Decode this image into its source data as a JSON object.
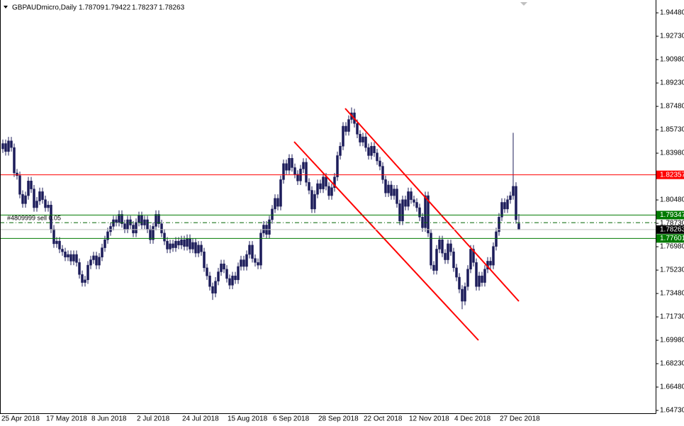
{
  "chart_data": {
    "type": "candlestick",
    "symbol": "GBPAUDmicro,Daily",
    "color": "#1c1c5a",
    "ylim": [
      1.6452,
      1.9544
    ],
    "yticks": [
      {
        "value": 1.9448,
        "label": "1.94480"
      },
      {
        "value": 1.9273,
        "label": "1.92730"
      },
      {
        "value": 1.9098,
        "label": "1.90980"
      },
      {
        "value": 1.8923,
        "label": "1.89230"
      },
      {
        "value": 1.8748,
        "label": "1.87480"
      },
      {
        "value": 1.8573,
        "label": "1.85730"
      },
      {
        "value": 1.8398,
        "label": "1.83980"
      },
      {
        "value": 1.8223,
        "label": "1.82230"
      },
      {
        "value": 1.8048,
        "label": "1.80480"
      },
      {
        "value": 1.7873,
        "label": "1.78730"
      },
      {
        "value": 1.7698,
        "label": "1.76980"
      },
      {
        "value": 1.7523,
        "label": "1.75230"
      },
      {
        "value": 1.7348,
        "label": "1.73480"
      },
      {
        "value": 1.7173,
        "label": "1.71730"
      },
      {
        "value": 1.6998,
        "label": "1.69980"
      },
      {
        "value": 1.6823,
        "label": "1.68230"
      },
      {
        "value": 1.6648,
        "label": "1.66480"
      },
      {
        "value": 1.6473,
        "label": "1.64730"
      }
    ],
    "categories": [
      "25 Apr 2018",
      null,
      null,
      null,
      null,
      null,
      null,
      null,
      null,
      null,
      null,
      null,
      null,
      null,
      null,
      null,
      "17 May 2018",
      null,
      null,
      null,
      null,
      null,
      null,
      null,
      null,
      null,
      null,
      null,
      null,
      null,
      null,
      null,
      "8 Jun 2018",
      null,
      null,
      null,
      null,
      null,
      null,
      null,
      null,
      null,
      null,
      null,
      null,
      null,
      null,
      null,
      "2 Jul 2018",
      null,
      null,
      null,
      null,
      null,
      null,
      null,
      null,
      null,
      null,
      null,
      null,
      null,
      null,
      null,
      "24 Jul 2018",
      null,
      null,
      null,
      null,
      null,
      null,
      null,
      null,
      null,
      null,
      null,
      null,
      null,
      null,
      null,
      "15 Aug 2018",
      null,
      null,
      null,
      null,
      null,
      null,
      null,
      null,
      null,
      null,
      null,
      null,
      null,
      null,
      null,
      "6 Sep 2018",
      null,
      null,
      null,
      null,
      null,
      null,
      null,
      null,
      null,
      null,
      null,
      null,
      null,
      null,
      null,
      "28 Sep 2018",
      null,
      null,
      null,
      null,
      null,
      null,
      null,
      null,
      null,
      null,
      null,
      null,
      null,
      null,
      null,
      "22 Oct 2018",
      null,
      null,
      null,
      null,
      null,
      null,
      null,
      null,
      null,
      null,
      null,
      null,
      null,
      null,
      null,
      "12 Nov 2018",
      null,
      null,
      null,
      null,
      null,
      null,
      null,
      null,
      null,
      null,
      null,
      null,
      null,
      null,
      null,
      "4 Dec 2018",
      null,
      null,
      null,
      null,
      null,
      null,
      null,
      null,
      null,
      null,
      null,
      null,
      null,
      null,
      null,
      "27 Dec 2018",
      null,
      null,
      null,
      null,
      null,
      null
    ],
    "open": [
      1.843,
      1.847,
      1.841,
      1.849,
      1.844,
      1.825,
      1.823,
      1.809,
      1.802,
      1.808,
      1.819,
      1.813,
      1.799,
      1.804,
      1.811,
      1.805,
      1.799,
      1.801,
      1.783,
      1.772,
      1.774,
      1.768,
      1.766,
      1.762,
      1.764,
      1.759,
      1.764,
      1.758,
      1.749,
      1.743,
      1.745,
      1.756,
      1.76,
      1.763,
      1.756,
      1.762,
      1.769,
      1.775,
      1.781,
      1.785,
      1.79,
      1.788,
      1.794,
      1.787,
      1.783,
      1.79,
      1.786,
      1.78,
      1.788,
      1.793,
      1.786,
      1.79,
      1.783,
      1.775,
      1.785,
      1.794,
      1.787,
      1.78,
      1.774,
      1.768,
      1.772,
      1.769,
      1.774,
      1.771,
      1.775,
      1.77,
      1.776,
      1.768,
      1.773,
      1.765,
      1.771,
      1.766,
      1.754,
      1.748,
      1.74,
      1.735,
      1.744,
      1.751,
      1.757,
      1.753,
      1.746,
      1.741,
      1.748,
      1.745,
      1.755,
      1.76,
      1.755,
      1.764,
      1.771,
      1.761,
      1.758,
      1.756,
      1.78,
      1.786,
      1.779,
      1.79,
      1.798,
      1.806,
      1.8,
      1.82,
      1.832,
      1.827,
      1.836,
      1.829,
      1.824,
      1.819,
      1.828,
      1.833,
      1.818,
      1.812,
      1.798,
      1.809,
      1.817,
      1.813,
      1.822,
      1.815,
      1.808,
      1.814,
      1.822,
      1.838,
      1.845,
      1.86,
      1.856,
      1.865,
      1.87,
      1.862,
      1.854,
      1.848,
      1.852,
      1.844,
      1.838,
      1.845,
      1.84,
      1.834,
      1.83,
      1.82,
      1.81,
      1.816,
      1.808,
      1.813,
      1.802,
      1.789,
      1.805,
      1.8,
      1.811,
      1.805,
      1.803,
      1.799,
      1.792,
      1.784,
      1.808,
      1.78,
      1.756,
      1.752,
      1.768,
      1.775,
      1.765,
      1.76,
      1.772,
      1.766,
      1.754,
      1.747,
      1.738,
      1.729,
      1.74,
      1.753,
      1.768,
      1.758,
      1.74,
      1.748,
      1.743,
      1.753,
      1.759,
      1.756,
      1.77,
      1.781,
      1.792,
      1.803,
      1.798,
      1.805,
      1.808,
      1.815,
      1.78709
    ],
    "high": [
      1.85,
      1.85,
      1.852,
      1.852,
      1.847,
      1.828,
      1.826,
      1.812,
      1.811,
      1.822,
      1.822,
      1.816,
      1.807,
      1.814,
      1.814,
      1.808,
      1.804,
      1.804,
      1.786,
      1.777,
      1.777,
      1.771,
      1.769,
      1.767,
      1.767,
      1.767,
      1.767,
      1.761,
      1.752,
      1.748,
      1.759,
      1.763,
      1.766,
      1.766,
      1.765,
      1.772,
      1.778,
      1.784,
      1.788,
      1.793,
      1.793,
      1.797,
      1.797,
      1.79,
      1.793,
      1.793,
      1.789,
      1.791,
      1.796,
      1.796,
      1.793,
      1.793,
      1.786,
      1.788,
      1.797,
      1.797,
      1.79,
      1.783,
      1.777,
      1.775,
      1.775,
      1.777,
      1.777,
      1.778,
      1.778,
      1.779,
      1.779,
      1.776,
      1.776,
      1.774,
      1.774,
      1.769,
      1.757,
      1.751,
      1.743,
      1.747,
      1.754,
      1.76,
      1.76,
      1.756,
      1.749,
      1.751,
      1.751,
      1.758,
      1.763,
      1.763,
      1.767,
      1.774,
      1.774,
      1.764,
      1.761,
      1.783,
      1.789,
      1.789,
      1.793,
      1.801,
      1.809,
      1.809,
      1.823,
      1.835,
      1.835,
      1.839,
      1.839,
      1.832,
      1.827,
      1.831,
      1.836,
      1.836,
      1.821,
      1.815,
      1.812,
      1.82,
      1.82,
      1.825,
      1.825,
      1.818,
      1.817,
      1.825,
      1.841,
      1.848,
      1.863,
      1.863,
      1.868,
      1.874,
      1.873,
      1.865,
      1.857,
      1.855,
      1.855,
      1.847,
      1.848,
      1.848,
      1.843,
      1.837,
      1.833,
      1.823,
      1.819,
      1.819,
      1.816,
      1.816,
      1.805,
      1.808,
      1.808,
      1.814,
      1.814,
      1.808,
      1.806,
      1.802,
      1.795,
      1.811,
      1.811,
      1.783,
      1.759,
      1.771,
      1.778,
      1.778,
      1.768,
      1.775,
      1.775,
      1.769,
      1.757,
      1.75,
      1.741,
      1.743,
      1.756,
      1.771,
      1.771,
      1.761,
      1.751,
      1.751,
      1.756,
      1.762,
      1.762,
      1.773,
      1.784,
      1.795,
      1.806,
      1.806,
      1.808,
      1.811,
      1.855,
      1.818,
      1.79422
    ],
    "low": [
      1.84,
      1.838,
      1.838,
      1.841,
      1.822,
      1.82,
      1.806,
      1.799,
      1.799,
      1.805,
      1.81,
      1.796,
      1.796,
      1.801,
      1.802,
      1.796,
      1.796,
      1.78,
      1.769,
      1.769,
      1.765,
      1.763,
      1.759,
      1.759,
      1.756,
      1.756,
      1.755,
      1.746,
      1.74,
      1.74,
      1.742,
      1.753,
      1.757,
      1.753,
      1.753,
      1.759,
      1.766,
      1.772,
      1.778,
      1.782,
      1.785,
      1.785,
      1.784,
      1.78,
      1.78,
      1.783,
      1.777,
      1.777,
      1.785,
      1.783,
      1.783,
      1.78,
      1.772,
      1.772,
      1.782,
      1.784,
      1.777,
      1.771,
      1.765,
      1.765,
      1.766,
      1.766,
      1.768,
      1.768,
      1.767,
      1.767,
      1.765,
      1.765,
      1.762,
      1.762,
      1.763,
      1.751,
      1.745,
      1.737,
      1.73,
      1.732,
      1.741,
      1.748,
      1.75,
      1.743,
      1.738,
      1.738,
      1.742,
      1.742,
      1.752,
      1.752,
      1.752,
      1.761,
      1.758,
      1.755,
      1.753,
      1.753,
      1.777,
      1.776,
      1.776,
      1.787,
      1.795,
      1.797,
      1.797,
      1.817,
      1.824,
      1.824,
      1.826,
      1.821,
      1.816,
      1.816,
      1.825,
      1.815,
      1.809,
      1.795,
      1.795,
      1.806,
      1.81,
      1.81,
      1.812,
      1.805,
      1.805,
      1.811,
      1.819,
      1.835,
      1.842,
      1.853,
      1.853,
      1.862,
      1.859,
      1.851,
      1.845,
      1.845,
      1.841,
      1.835,
      1.835,
      1.837,
      1.831,
      1.827,
      1.817,
      1.807,
      1.807,
      1.805,
      1.805,
      1.799,
      1.786,
      1.786,
      1.797,
      1.797,
      1.802,
      1.8,
      1.796,
      1.789,
      1.781,
      1.781,
      1.777,
      1.753,
      1.749,
      1.749,
      1.765,
      1.762,
      1.757,
      1.757,
      1.763,
      1.751,
      1.744,
      1.735,
      1.723,
      1.726,
      1.737,
      1.75,
      1.755,
      1.737,
      1.737,
      1.74,
      1.74,
      1.75,
      1.753,
      1.753,
      1.767,
      1.778,
      1.789,
      1.795,
      1.795,
      1.802,
      1.805,
      1.787,
      1.78237
    ],
    "close": [
      1.847,
      1.841,
      1.849,
      1.844,
      1.825,
      1.823,
      1.809,
      1.802,
      1.808,
      1.819,
      1.813,
      1.799,
      1.804,
      1.811,
      1.805,
      1.799,
      1.801,
      1.783,
      1.772,
      1.774,
      1.768,
      1.766,
      1.762,
      1.764,
      1.759,
      1.764,
      1.758,
      1.749,
      1.743,
      1.745,
      1.756,
      1.76,
      1.763,
      1.756,
      1.762,
      1.769,
      1.775,
      1.781,
      1.785,
      1.79,
      1.788,
      1.794,
      1.787,
      1.783,
      1.79,
      1.786,
      1.78,
      1.788,
      1.793,
      1.786,
      1.79,
      1.783,
      1.775,
      1.785,
      1.794,
      1.787,
      1.78,
      1.774,
      1.768,
      1.772,
      1.769,
      1.774,
      1.771,
      1.775,
      1.77,
      1.776,
      1.768,
      1.773,
      1.765,
      1.771,
      1.766,
      1.754,
      1.748,
      1.74,
      1.735,
      1.744,
      1.751,
      1.757,
      1.753,
      1.746,
      1.741,
      1.748,
      1.745,
      1.755,
      1.76,
      1.755,
      1.764,
      1.771,
      1.761,
      1.758,
      1.756,
      1.78,
      1.786,
      1.779,
      1.79,
      1.798,
      1.806,
      1.8,
      1.82,
      1.832,
      1.827,
      1.836,
      1.829,
      1.824,
      1.819,
      1.828,
      1.833,
      1.818,
      1.812,
      1.798,
      1.809,
      1.817,
      1.813,
      1.822,
      1.815,
      1.808,
      1.814,
      1.822,
      1.838,
      1.845,
      1.86,
      1.856,
      1.865,
      1.87,
      1.862,
      1.854,
      1.848,
      1.852,
      1.844,
      1.838,
      1.845,
      1.84,
      1.834,
      1.83,
      1.82,
      1.81,
      1.816,
      1.808,
      1.813,
      1.802,
      1.789,
      1.805,
      1.8,
      1.811,
      1.805,
      1.803,
      1.799,
      1.792,
      1.784,
      1.808,
      1.78,
      1.756,
      1.752,
      1.768,
      1.775,
      1.765,
      1.76,
      1.772,
      1.766,
      1.754,
      1.747,
      1.738,
      1.729,
      1.74,
      1.753,
      1.768,
      1.758,
      1.74,
      1.748,
      1.743,
      1.753,
      1.759,
      1.756,
      1.77,
      1.781,
      1.792,
      1.803,
      1.798,
      1.805,
      1.808,
      1.815,
      1.79,
      1.78263
    ],
    "levels": [
      {
        "value": 1.82357,
        "color": "#ff0000"
      },
      {
        "value": 1.79347,
        "color": "#007a00"
      },
      {
        "value": 1.77601,
        "color": "#007a00"
      }
    ],
    "order": {
      "label": "#4809999 sell 0.05",
      "value": 1.7878
    }
  }
}
